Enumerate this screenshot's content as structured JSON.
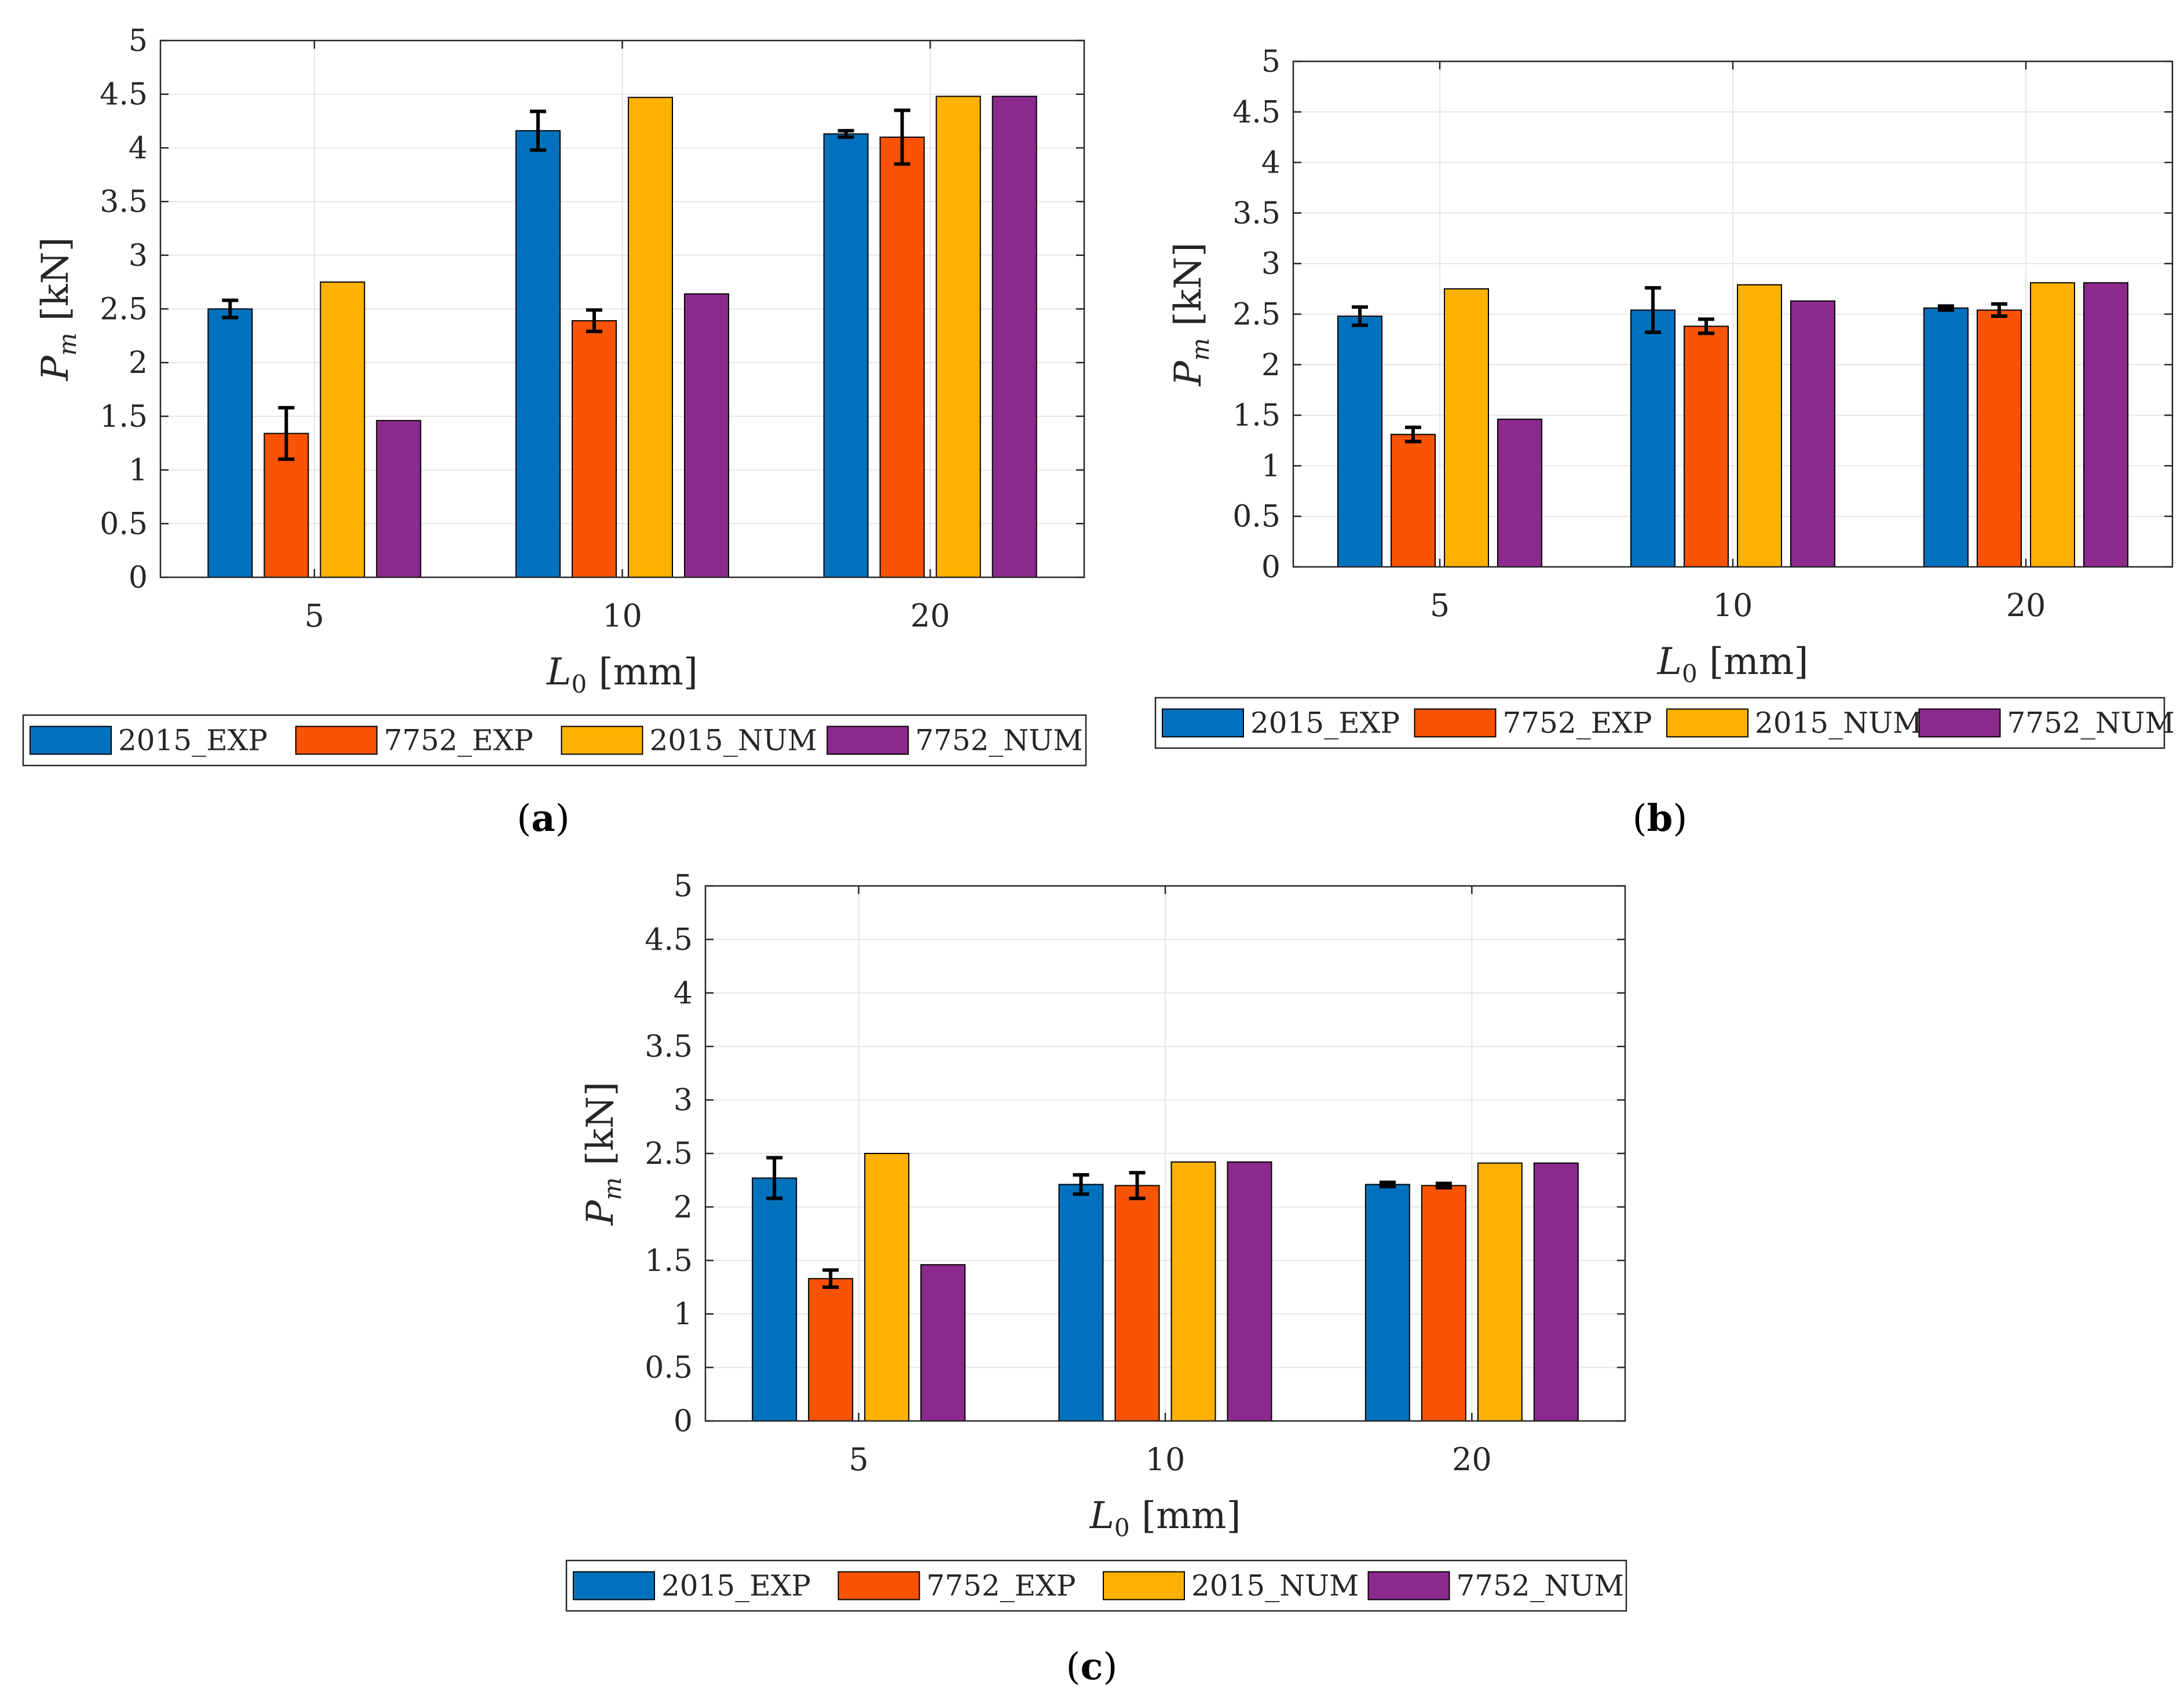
{
  "colors": {
    "2015_EXP": "#0072BD",
    "7752_EXP": "#F95305",
    "2015_NUM": "#FDB100",
    "7752_NUM": "#8B2A8C",
    "axis": "#262626",
    "grid": "#e6e6e6"
  },
  "chart_data": [
    {
      "id": "a",
      "type": "bar",
      "panel_label": "(a)",
      "panel_letter": "a",
      "categories": [
        "5",
        "10",
        "20"
      ],
      "series": [
        {
          "name": "2015_EXP",
          "values": [
            2.5,
            4.16,
            4.13
          ],
          "errors": [
            0.08,
            0.18,
            0.03
          ]
        },
        {
          "name": "7752_EXP",
          "values": [
            1.34,
            2.39,
            4.1
          ],
          "errors": [
            0.24,
            0.1,
            0.25
          ]
        },
        {
          "name": "2015_NUM",
          "values": [
            2.75,
            4.47,
            4.48
          ],
          "errors": null
        },
        {
          "name": "7752_NUM",
          "values": [
            1.46,
            2.64,
            4.48
          ],
          "errors": null
        }
      ],
      "ylabel": "P_m [kN]",
      "ylabel_main": "P",
      "ylabel_sub": "m",
      "ylabel_unit": " [kN]",
      "xlabel": "L_0 [mm]",
      "xlabel_main": "L",
      "xlabel_sub": "0",
      "xlabel_unit": " [mm]",
      "ylim": [
        0,
        5
      ],
      "yticks": [
        "0",
        "0.5",
        "1",
        "1.5",
        "2",
        "2.5",
        "3",
        "3.5",
        "4",
        "4.5",
        "5"
      ],
      "grid": true,
      "legend_position": "bottom"
    },
    {
      "id": "b",
      "type": "bar",
      "panel_label": "(b)",
      "panel_letter": "b",
      "categories": [
        "5",
        "10",
        "20"
      ],
      "series": [
        {
          "name": "2015_EXP",
          "values": [
            2.48,
            2.54,
            2.56
          ],
          "errors": [
            0.09,
            0.22,
            0.02
          ]
        },
        {
          "name": "7752_EXP",
          "values": [
            1.31,
            2.38,
            2.54
          ],
          "errors": [
            0.07,
            0.07,
            0.06
          ]
        },
        {
          "name": "2015_NUM",
          "values": [
            2.75,
            2.79,
            2.81
          ],
          "errors": null
        },
        {
          "name": "7752_NUM",
          "values": [
            1.46,
            2.63,
            2.81
          ],
          "errors": null
        }
      ],
      "ylabel": "P_m [kN]",
      "ylabel_main": "P",
      "ylabel_sub": "m",
      "ylabel_unit": " [kN]",
      "xlabel": "L_0 [mm]",
      "xlabel_main": "L",
      "xlabel_sub": "0",
      "xlabel_unit": " [mm]",
      "ylim": [
        0,
        5
      ],
      "yticks": [
        "0",
        "0.5",
        "1",
        "1.5",
        "2",
        "2.5",
        "3",
        "3.5",
        "4",
        "4.5",
        "5"
      ],
      "grid": true,
      "legend_position": "bottom"
    },
    {
      "id": "c",
      "type": "bar",
      "panel_label": "(c)",
      "panel_letter": "c",
      "categories": [
        "5",
        "10",
        "20"
      ],
      "series": [
        {
          "name": "2015_EXP",
          "values": [
            2.27,
            2.21,
            2.21
          ],
          "errors": [
            0.19,
            0.09,
            0.02
          ]
        },
        {
          "name": "7752_EXP",
          "values": [
            1.33,
            2.2,
            2.2
          ],
          "errors": [
            0.08,
            0.12,
            0.02
          ]
        },
        {
          "name": "2015_NUM",
          "values": [
            2.5,
            2.42,
            2.41
          ],
          "errors": null
        },
        {
          "name": "7752_NUM",
          "values": [
            1.46,
            2.42,
            2.41
          ],
          "errors": null
        }
      ],
      "ylabel": "P_m [kN]",
      "ylabel_main": "P",
      "ylabel_sub": "m",
      "ylabel_unit": " [kN]",
      "xlabel": "L_0 [mm]",
      "xlabel_main": "L",
      "xlabel_sub": "0",
      "xlabel_unit": " [mm]",
      "ylim": [
        0,
        5
      ],
      "yticks": [
        "0",
        "0.5",
        "1",
        "1.5",
        "2",
        "2.5",
        "3",
        "3.5",
        "4",
        "4.5",
        "5"
      ],
      "grid": true,
      "legend_position": "bottom"
    }
  ]
}
